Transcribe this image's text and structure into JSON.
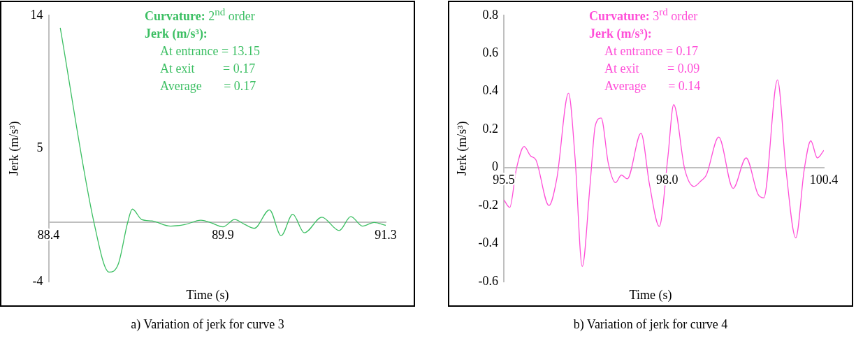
{
  "chart_data": [
    {
      "type": "line",
      "title": "a) Variation of jerk for curve 3",
      "xlabel": "Time (s)",
      "ylabel": "Jerk (m/s³)",
      "annotations": [
        "Curvature: 2$^{nd}$ order",
        "Jerk (m/s³):",
        "At entrance = 13.15",
        "At exit         = 0.17",
        "Average       = 0.17"
      ],
      "x": [
        88.5,
        88.79,
        88.92,
        89.0,
        89.08,
        89.12,
        89.2,
        89.29,
        89.45,
        89.57,
        89.71,
        89.79,
        89.9,
        90.0,
        90.09,
        90.17,
        90.3,
        90.4,
        90.5,
        90.6,
        90.75,
        90.9,
        91.0,
        91.1,
        91.2,
        91.3
      ],
      "series": [
        {
          "color": "#3cbf63",
          "values": [
            13.15,
            0,
            -3.36,
            -2.8,
            0,
            0.9,
            0.2,
            0.1,
            -0.25,
            -0.15,
            0.15,
            0,
            -0.3,
            0.2,
            -0.15,
            -0.4,
            0.85,
            -0.9,
            0.55,
            -0.7,
            0.35,
            -0.55,
            0.4,
            -0.25,
            0,
            -0.2
          ]
        }
      ],
      "xlim": [
        88.4,
        91.3
      ],
      "xticks": [
        88.4,
        89.9,
        91.3
      ],
      "ylim": [
        -4,
        14
      ],
      "yticks": [
        -4,
        5,
        14
      ],
      "grid": false,
      "legend": false
    },
    {
      "type": "line",
      "title": "b) Variation of jerk for curve 4",
      "xlabel": "Time (s)",
      "ylabel": "Jerk (m/s³)",
      "annotations": [
        "Curvature: 3$^{rd}$ order",
        "Jerk (m/s³):",
        "At entrance = 0.17",
        "At exit         = 0.09",
        "Average       = 0.14"
      ],
      "x": [
        95.5,
        95.59,
        95.69,
        95.81,
        95.91,
        95.99,
        96.19,
        96.31,
        96.49,
        96.59,
        96.7,
        96.82,
        96.9,
        96.99,
        97.1,
        97.21,
        97.3,
        97.39,
        97.6,
        97.73,
        97.88,
        98.01,
        98.1,
        98.27,
        98.41,
        98.52,
        98.6,
        98.79,
        99.01,
        99.21,
        99.39,
        99.48,
        99.69,
        99.82,
        99.97,
        100.1,
        100.2,
        100.3,
        100.4
      ],
      "series": [
        {
          "color": "#ff4fd8",
          "values": [
            -0.17,
            -0.21,
            -0.01,
            0.11,
            0.06,
            0.04,
            -0.2,
            -0.06,
            0.39,
            0.05,
            -0.52,
            -0.09,
            0.22,
            0.26,
            0.02,
            -0.08,
            -0.04,
            -0.06,
            0.18,
            -0.09,
            -0.31,
            0.05,
            0.33,
            -0.01,
            -0.1,
            -0.07,
            -0.04,
            0.16,
            -0.11,
            0.05,
            -0.14,
            -0.16,
            0.46,
            -0.01,
            -0.37,
            -0.01,
            0.14,
            0.05,
            0.09
          ]
        }
      ],
      "xlim": [
        95.5,
        100.4
      ],
      "xticks": [
        95.5,
        {
          "value": 98,
          "label": "98.0"
        },
        100.4
      ],
      "ylim": [
        -0.6,
        0.8
      ],
      "yticks": [
        0.8,
        0.6,
        0.4,
        0.2,
        0,
        -0.2,
        -0.4,
        -0.6
      ],
      "grid": false,
      "legend": false
    }
  ]
}
